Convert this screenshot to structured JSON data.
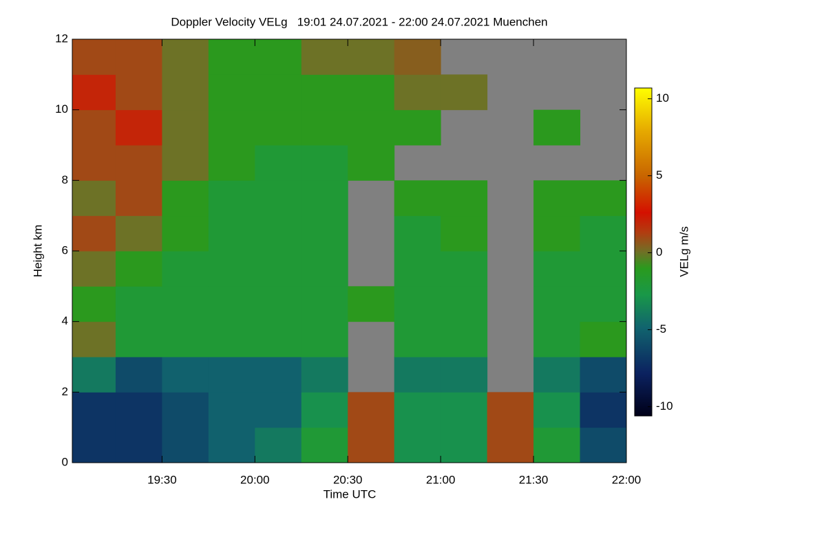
{
  "chart_data": {
    "type": "heatmap",
    "title": "Doppler Velocity VELg   19:01 24.07.2021 - 22:00 24.07.2021 Muenchen",
    "xlabel": "Time UTC",
    "ylabel": "Height km",
    "colorbar_label": "VELg m/s",
    "xlim": [
      19.0167,
      22.0
    ],
    "xticks": [
      {
        "value": 19.5,
        "label": "19:30"
      },
      {
        "value": 20.0,
        "label": "20:00"
      },
      {
        "value": 20.5,
        "label": "20:30"
      },
      {
        "value": 21.0,
        "label": "21:00"
      },
      {
        "value": 21.5,
        "label": "21:30"
      },
      {
        "value": 22.0,
        "label": "22:00"
      }
    ],
    "ylim": [
      0,
      12
    ],
    "yticks": [
      0,
      2,
      4,
      6,
      8,
      10,
      12
    ],
    "clim": [
      -10.6,
      10.7
    ],
    "cticks": [
      -10,
      -5,
      0,
      5,
      10
    ],
    "x": [
      19.125,
      19.375,
      19.625,
      19.875,
      20.125,
      20.375,
      20.625,
      20.875,
      21.125,
      21.375,
      21.625,
      21.875
    ],
    "y": [
      0.5,
      1.5,
      2.5,
      3.5,
      4.5,
      5.5,
      6.5,
      7.5,
      8.5,
      9.5,
      10.5,
      11.5
    ],
    "z": [
      [
        -7,
        -7,
        -6,
        -5,
        -4,
        -2,
        1,
        -3,
        -3,
        1,
        -2,
        -6
      ],
      [
        -7,
        -7,
        -6,
        -5,
        -5,
        -3,
        1,
        -3,
        -3,
        1,
        -3,
        -7
      ],
      [
        -4,
        -6,
        -5,
        -5,
        -5,
        -4,
        null,
        -4,
        -4,
        null,
        -4,
        -6
      ],
      [
        0,
        -2,
        -2,
        -2,
        -2,
        -2,
        null,
        -2,
        -2,
        null,
        -2,
        -1
      ],
      [
        -1,
        -2,
        -2,
        -2,
        -2,
        -2,
        -1,
        -2,
        -2,
        null,
        -2,
        -2
      ],
      [
        0,
        -1,
        -2,
        -2,
        -2,
        -2,
        null,
        -2,
        -2,
        null,
        -2,
        -2
      ],
      [
        1,
        0,
        -1,
        -2,
        -2,
        -2,
        null,
        -2,
        -1,
        null,
        -1,
        -2
      ],
      [
        0,
        1,
        -1,
        -2,
        -2,
        -2,
        null,
        -1,
        -1,
        null,
        -1,
        -1
      ],
      [
        1,
        1,
        0,
        -1,
        -2,
        -2,
        -1,
        null,
        null,
        null,
        null,
        null
      ],
      [
        1,
        2,
        0,
        -1,
        -1,
        -1,
        -1,
        -1,
        null,
        null,
        -1,
        null
      ],
      [
        2,
        1,
        0,
        -1,
        -1,
        -1,
        -1,
        0,
        0,
        null,
        null,
        null
      ],
      [
        1,
        1,
        0,
        -1,
        -1,
        0,
        0,
        0.5,
        null,
        null,
        null,
        null
      ]
    ]
  }
}
